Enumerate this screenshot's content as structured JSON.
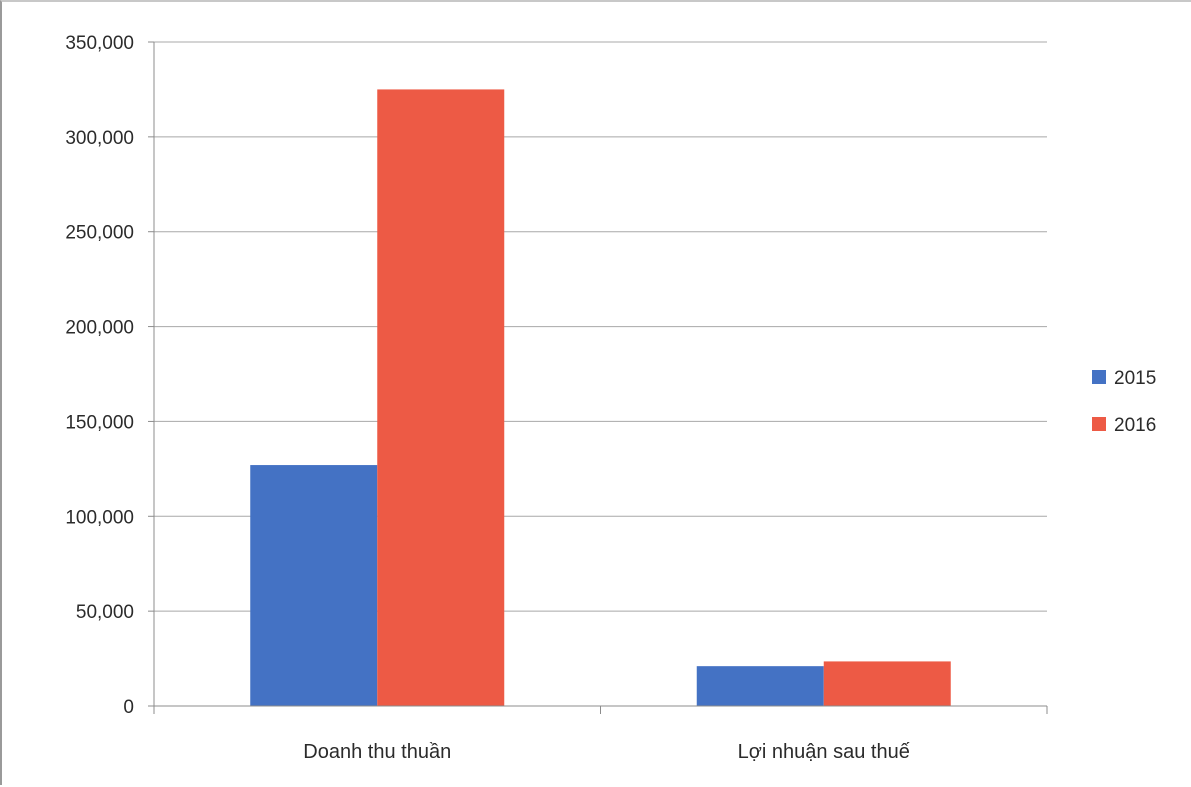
{
  "chart_data": {
    "type": "bar",
    "title": "",
    "xlabel": "",
    "ylabel": "",
    "categories": [
      "Doanh thu thuần",
      "Lợi nhuận sau thuế"
    ],
    "series": [
      {
        "name": "2015",
        "color": "#4472C4",
        "values": [
          127000,
          21000
        ]
      },
      {
        "name": "2016",
        "color": "#ED5A45",
        "values": [
          325000,
          23500
        ]
      }
    ],
    "ylim": [
      0,
      350000
    ],
    "yticks": [
      0,
      50000,
      100000,
      150000,
      200000,
      250000,
      300000,
      350000
    ],
    "ytick_labels": [
      "0",
      "50,000",
      "100,000",
      "150,000",
      "200,000",
      "250,000",
      "300,000",
      "350,000"
    ],
    "grid": true,
    "legend_position": "right"
  }
}
